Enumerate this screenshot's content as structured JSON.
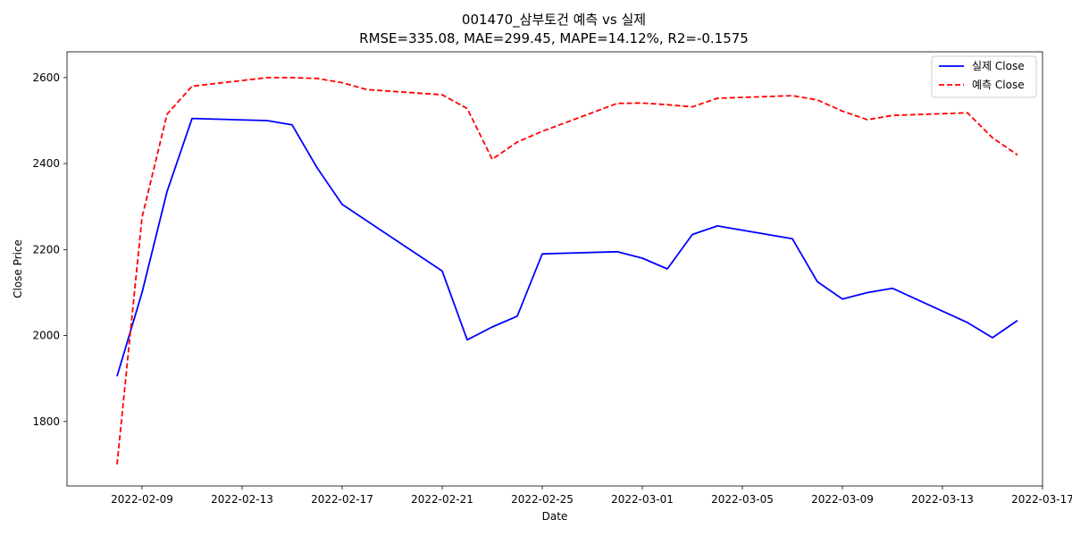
{
  "chart_data": {
    "type": "line",
    "title": "001470_삼부토건 예측 vs 실제",
    "subtitle": "RMSE=335.08, MAE=299.45, MAPE=14.12%, R2=-0.1575",
    "xlabel": "Date",
    "ylabel": "Close Price",
    "xlim": [
      "2022-02-06",
      "2022-03-17"
    ],
    "ylim": [
      1650,
      2660
    ],
    "x_ticks": [
      "2022-02-09",
      "2022-02-13",
      "2022-02-17",
      "2022-02-21",
      "2022-02-25",
      "2022-03-01",
      "2022-03-05",
      "2022-03-09",
      "2022-03-13",
      "2022-03-17"
    ],
    "y_ticks": [
      1800,
      2000,
      2200,
      2400,
      2600
    ],
    "legend_position": "upper right",
    "grid": false,
    "series": [
      {
        "name": "실제 Close",
        "color": "#0000ff",
        "style": "solid",
        "points": [
          [
            "2022-02-08",
            1905
          ],
          [
            "2022-02-09",
            2100
          ],
          [
            "2022-02-10",
            2335
          ],
          [
            "2022-02-11",
            2505
          ],
          [
            "2022-02-14",
            2500
          ],
          [
            "2022-02-15",
            2490
          ],
          [
            "2022-02-16",
            2390
          ],
          [
            "2022-02-17",
            2305
          ],
          [
            "2022-02-21",
            2150
          ],
          [
            "2022-02-22",
            1990
          ],
          [
            "2022-02-23",
            2020
          ],
          [
            "2022-02-24",
            2045
          ],
          [
            "2022-02-25",
            2190
          ],
          [
            "2022-02-28",
            2195
          ],
          [
            "2022-03-01",
            2180
          ],
          [
            "2022-03-02",
            2155
          ],
          [
            "2022-03-03",
            2235
          ],
          [
            "2022-03-04",
            2255
          ],
          [
            "2022-03-07",
            2225
          ],
          [
            "2022-03-08",
            2125
          ],
          [
            "2022-03-09",
            2085
          ],
          [
            "2022-03-10",
            2100
          ],
          [
            "2022-03-11",
            2110
          ],
          [
            "2022-03-14",
            2030
          ],
          [
            "2022-03-15",
            1995
          ],
          [
            "2022-03-16",
            2035
          ]
        ]
      },
      {
        "name": "예측 Close",
        "color": "#ff0000",
        "style": "dashed",
        "points": [
          [
            "2022-02-08",
            1700
          ],
          [
            "2022-02-09",
            2275
          ],
          [
            "2022-02-10",
            2515
          ],
          [
            "2022-02-11",
            2580
          ],
          [
            "2022-02-14",
            2600
          ],
          [
            "2022-02-15",
            2600
          ],
          [
            "2022-02-16",
            2598
          ],
          [
            "2022-02-17",
            2588
          ],
          [
            "2022-02-18",
            2572
          ],
          [
            "2022-02-21",
            2560
          ],
          [
            "2022-02-22",
            2528
          ],
          [
            "2022-02-23",
            2410
          ],
          [
            "2022-02-24",
            2450
          ],
          [
            "2022-02-25",
            2475
          ],
          [
            "2022-02-28",
            2540
          ],
          [
            "2022-03-01",
            2541
          ],
          [
            "2022-03-02",
            2537
          ],
          [
            "2022-03-03",
            2532
          ],
          [
            "2022-03-04",
            2552
          ],
          [
            "2022-03-07",
            2558
          ],
          [
            "2022-03-08",
            2548
          ],
          [
            "2022-03-09",
            2522
          ],
          [
            "2022-03-10",
            2502
          ],
          [
            "2022-03-11",
            2512
          ],
          [
            "2022-03-14",
            2518
          ],
          [
            "2022-03-15",
            2460
          ],
          [
            "2022-03-16",
            2420
          ]
        ]
      }
    ]
  }
}
